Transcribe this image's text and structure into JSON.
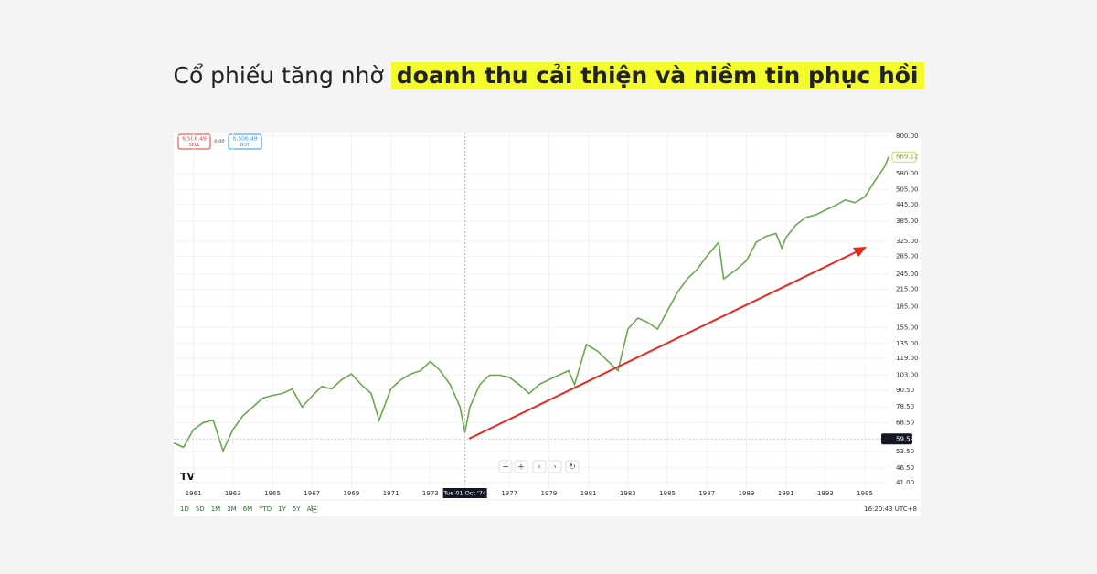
{
  "header": {
    "text": "Cổ phiếu tăng nhờ",
    "highlight": "doanh thu cải thiện và niềm tin phục hồi"
  },
  "order_panel": {
    "sell_price": "6,506.49",
    "sell_label": "SELL",
    "spread": "0.00",
    "buy_price": "6,506.49",
    "buy_label": "BUY"
  },
  "toolbar": {
    "ranges": [
      "1D",
      "5D",
      "1M",
      "3M",
      "6M",
      "YTD",
      "1Y",
      "5Y",
      "All"
    ],
    "clock": "16:20:43 UTC+8"
  },
  "chart_data": {
    "type": "line",
    "log_y": true,
    "grid": true,
    "color": "#6aa84f",
    "x": [
      1960.0,
      1960.5,
      1961.0,
      1961.5,
      1962.0,
      1962.5,
      1963.0,
      1963.5,
      1964.0,
      1964.5,
      1965.0,
      1965.5,
      1966.0,
      1966.5,
      1967.0,
      1967.5,
      1968.0,
      1968.5,
      1969.0,
      1969.5,
      1970.0,
      1970.4,
      1971.0,
      1971.5,
      1972.0,
      1972.5,
      1973.0,
      1973.5,
      1974.0,
      1974.5,
      1974.75,
      1975.0,
      1975.5,
      1976.0,
      1976.5,
      1977.0,
      1977.5,
      1978.0,
      1978.5,
      1979.0,
      1979.5,
      1980.0,
      1980.3,
      1980.9,
      1981.5,
      1982.0,
      1982.5,
      1983.0,
      1983.5,
      1984.0,
      1984.5,
      1985.0,
      1985.5,
      1986.0,
      1986.5,
      1987.0,
      1987.6,
      1987.85,
      1988.5,
      1989.0,
      1989.5,
      1990.0,
      1990.5,
      1990.8,
      1991.0,
      1991.5,
      1992.0,
      1992.5,
      1993.0,
      1993.5,
      1994.0,
      1994.5,
      1995.0,
      1995.5,
      1996.0,
      1996.2
    ],
    "values": [
      57.5,
      55.5,
      64.6,
      68.6,
      70,
      53.8,
      64.6,
      72.7,
      78.4,
      84.6,
      86.6,
      88,
      91.5,
      78.4,
      86,
      93.5,
      91.5,
      99,
      104,
      95,
      88,
      70,
      91.5,
      99,
      104,
      107,
      116,
      107,
      95,
      78.4,
      63.1,
      78.4,
      95,
      103,
      103,
      101,
      95,
      88,
      95,
      99,
      103,
      107,
      95,
      134,
      126,
      116,
      107,
      153,
      168,
      162,
      153,
      179,
      209,
      235,
      255,
      286,
      322,
      235,
      255,
      275,
      322,
      339,
      347,
      306,
      335,
      373,
      398,
      407,
      424,
      441,
      463,
      452,
      476,
      544,
      616,
      669.12
    ],
    "xlim": [
      1960,
      1996.2
    ],
    "xticks": [
      1961,
      1963,
      1965,
      1967,
      1969,
      1971,
      1973,
      1977,
      1979,
      1981,
      1983,
      1985,
      1987,
      1989,
      1991,
      1993,
      1995
    ],
    "ylim": [
      38.8,
      825
    ],
    "yticks": [
      {
        "value": 800,
        "label": "800.00"
      },
      {
        "value": 580,
        "label": "580.00"
      },
      {
        "value": 505,
        "label": "505.00"
      },
      {
        "value": 445,
        "label": "445.00"
      },
      {
        "value": 385,
        "label": "385.00"
      },
      {
        "value": 325,
        "label": "325.00"
      },
      {
        "value": 285,
        "label": "285.00"
      },
      {
        "value": 245,
        "label": "245.00"
      },
      {
        "value": 215,
        "label": "215.00"
      },
      {
        "value": 185,
        "label": "185.00"
      },
      {
        "value": 155,
        "label": "155.00"
      },
      {
        "value": 135,
        "label": "135.00"
      },
      {
        "value": 119,
        "label": "119.00"
      },
      {
        "value": 103,
        "label": "103.00"
      },
      {
        "value": 90.5,
        "label": "90.50"
      },
      {
        "value": 78.5,
        "label": "78.50"
      },
      {
        "value": 68.5,
        "label": "68.50"
      },
      {
        "value": 53.5,
        "label": "53.50"
      },
      {
        "value": 46.5,
        "label": "46.50"
      },
      {
        "value": 41,
        "label": "41.00"
      }
    ],
    "crosshair": {
      "x": 1974.75,
      "label": "Tue 01 Oct '74",
      "price": 59.59
    }
  }
}
